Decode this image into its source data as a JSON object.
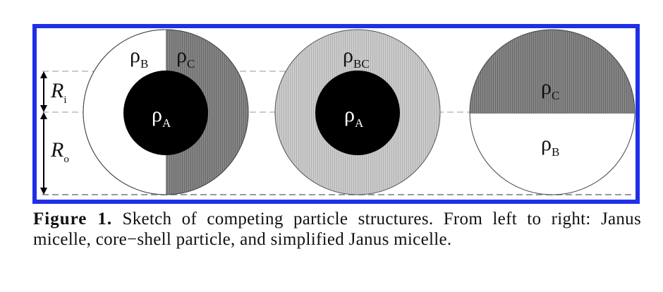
{
  "figure": {
    "labels": {
      "rho": "ρ",
      "sub_b": "B",
      "sub_c": "C",
      "sub_bc": "BC",
      "sub_a": "A",
      "r_letter": "R",
      "sub_i": "i",
      "sub_o": "o"
    },
    "colors": {
      "frame": "#1f2fe8",
      "core": "#000000",
      "shell_c": "#7d7d7d",
      "shell_bc": "#c4c4c4",
      "shell_b": "#ffffff"
    },
    "structures": [
      "Janus micelle",
      "core-shell particle",
      "simplified Janus micelle"
    ]
  },
  "caption": {
    "label": "Figure 1.",
    "text": " Sketch of competing particle structures. From left to right:  Janus micelle, core−shell particle, and simplified Janus micelle."
  }
}
